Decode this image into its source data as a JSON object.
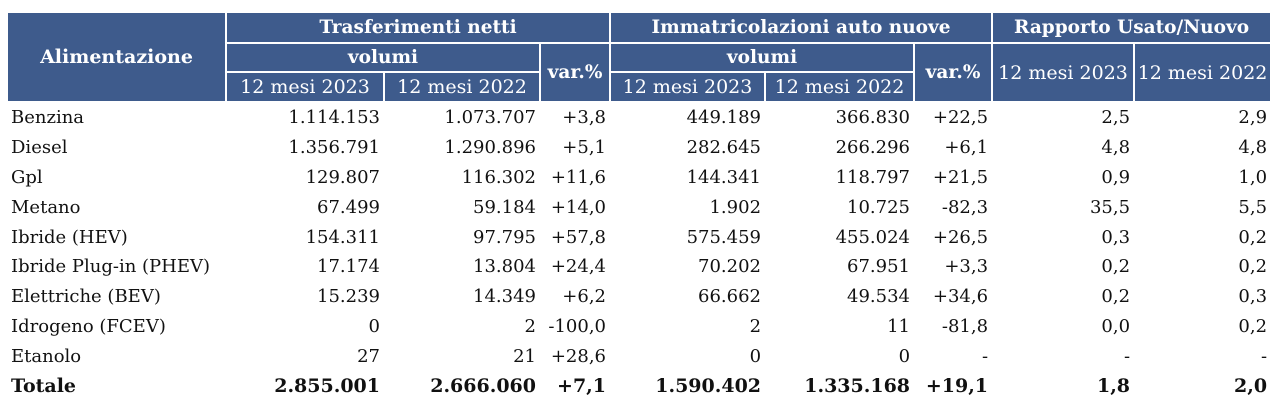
{
  "header": {
    "alimentazione": "Alimentazione",
    "trasferimenti": "Trasferimenti netti",
    "immatricolazioni": "Immatricolazioni auto nuove",
    "rapporto": "Rapporto Usato/Nuovo",
    "volumi": "volumi",
    "var": "var.%",
    "y2023": "12 mesi 2023",
    "y2022": "12 mesi 2022"
  },
  "rows": [
    {
      "label": "Benzina",
      "tn23": "1.114.153",
      "tn22": "1.073.707",
      "tnvar": "+3,8",
      "im23": "449.189",
      "im22": "366.830",
      "imvar": "+22,5",
      "r23": "2,5",
      "r22": "2,9"
    },
    {
      "label": "Diesel",
      "tn23": "1.356.791",
      "tn22": "1.290.896",
      "tnvar": "+5,1",
      "im23": "282.645",
      "im22": "266.296",
      "imvar": "+6,1",
      "r23": "4,8",
      "r22": "4,8"
    },
    {
      "label": "Gpl",
      "tn23": "129.807",
      "tn22": "116.302",
      "tnvar": "+11,6",
      "im23": "144.341",
      "im22": "118.797",
      "imvar": "+21,5",
      "r23": "0,9",
      "r22": "1,0"
    },
    {
      "label": "Metano",
      "tn23": "67.499",
      "tn22": "59.184",
      "tnvar": "+14,0",
      "im23": "1.902",
      "im22": "10.725",
      "imvar": "-82,3",
      "r23": "35,5",
      "r22": "5,5"
    },
    {
      "label": "Ibride (HEV)",
      "tn23": "154.311",
      "tn22": "97.795",
      "tnvar": "+57,8",
      "im23": "575.459",
      "im22": "455.024",
      "imvar": "+26,5",
      "r23": "0,3",
      "r22": "0,2"
    },
    {
      "label": "Ibride Plug-in  (PHEV)",
      "tn23": "17.174",
      "tn22": "13.804",
      "tnvar": "+24,4",
      "im23": "70.202",
      "im22": "67.951",
      "imvar": "+3,3",
      "r23": "0,2",
      "r22": "0,2"
    },
    {
      "label": "Elettriche (BEV)",
      "tn23": "15.239",
      "tn22": "14.349",
      "tnvar": "+6,2",
      "im23": "66.662",
      "im22": "49.534",
      "imvar": "+34,6",
      "r23": "0,2",
      "r22": "0,3"
    },
    {
      "label": "Idrogeno  (FCEV)",
      "tn23": "0",
      "tn22": "2",
      "tnvar": "-100,0",
      "im23": "2",
      "im22": "11",
      "imvar": "-81,8",
      "r23": "0,0",
      "r22": "0,2"
    },
    {
      "label": "Etanolo",
      "tn23": "27",
      "tn22": "21",
      "tnvar": "+28,6",
      "im23": "0",
      "im22": "0",
      "imvar": "-",
      "r23": "-",
      "r22": "-"
    }
  ],
  "total": {
    "label": "Totale",
    "tn23": "2.855.001",
    "tn22": "2.666.060",
    "tnvar": "+7,1",
    "im23": "1.590.402",
    "im22": "1.335.168",
    "imvar": "+19,1",
    "r23": "1,8",
    "r22": "2,0"
  }
}
